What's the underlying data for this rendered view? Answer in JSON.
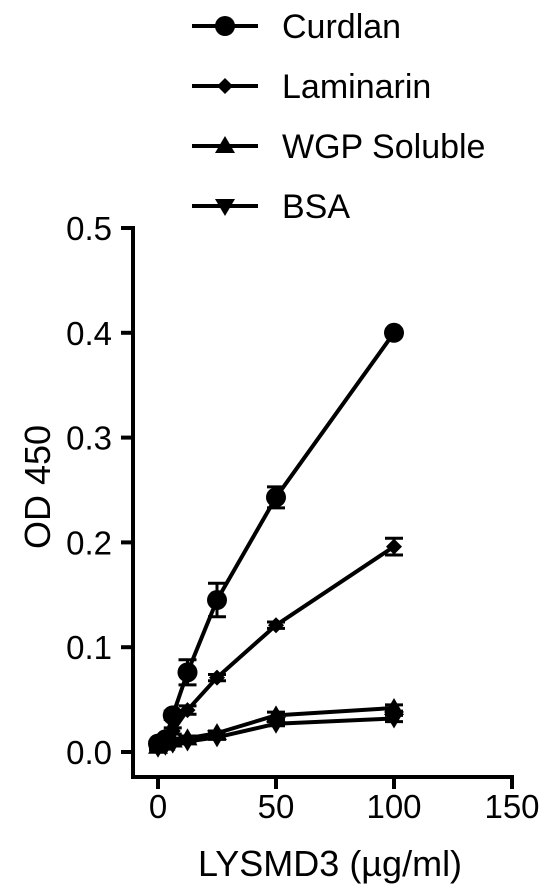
{
  "chart_data": {
    "type": "line",
    "title": "",
    "xlabel": "LYSMD3 (µg/ml)",
    "ylabel": "OD 450",
    "xlim": [
      0,
      150
    ],
    "ylim": [
      0,
      0.5
    ],
    "xticks": [
      "0",
      "50",
      "100",
      "150"
    ],
    "yticks": [
      "0.0",
      "0.1",
      "0.2",
      "0.3",
      "0.4",
      "0.5"
    ],
    "grid": false,
    "legend_position": "top",
    "series": [
      {
        "name": "Curdlan",
        "marker": "circle",
        "x": [
          0,
          3.125,
          6.25,
          12.5,
          25,
          50,
          100
        ],
        "y": [
          0.008,
          0.012,
          0.035,
          0.076,
          0.145,
          0.243,
          0.4
        ],
        "err": [
          0.002,
          0.003,
          0.004,
          0.012,
          0.016,
          0.01,
          0.003
        ]
      },
      {
        "name": "Laminarin",
        "marker": "diamond",
        "x": [
          0,
          3.125,
          6.25,
          12.5,
          25,
          50,
          100
        ],
        "y": [
          0.006,
          0.01,
          0.02,
          0.04,
          0.071,
          0.121,
          0.196
        ],
        "err": [
          0.002,
          0.002,
          0.003,
          0.004,
          0.003,
          0.003,
          0.008
        ]
      },
      {
        "name": "WGP Soluble",
        "marker": "triangle-up",
        "x": [
          0,
          3.125,
          6.25,
          12.5,
          25,
          50,
          100
        ],
        "y": [
          0.005,
          0.008,
          0.011,
          0.013,
          0.018,
          0.035,
          0.042
        ],
        "err": [
          0.002,
          0.002,
          0.002,
          0.002,
          0.002,
          0.003,
          0.003
        ]
      },
      {
        "name": "BSA",
        "marker": "triangle-down",
        "x": [
          0,
          3.125,
          6.25,
          12.5,
          25,
          50,
          100
        ],
        "y": [
          0.004,
          0.006,
          0.008,
          0.01,
          0.014,
          0.027,
          0.032
        ],
        "err": [
          0.002,
          0.002,
          0.002,
          0.002,
          0.002,
          0.002,
          0.003
        ]
      }
    ]
  }
}
